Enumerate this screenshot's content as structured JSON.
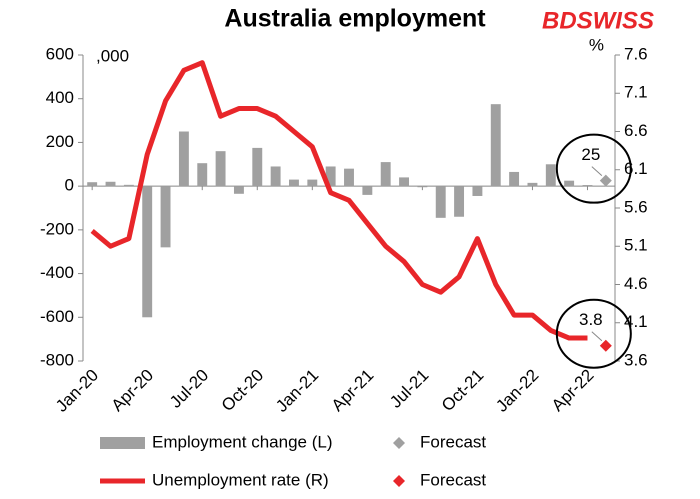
{
  "chart_data": {
    "type": "combo",
    "title": "Australia employment",
    "brand": "BDSWISS",
    "y_label": ",000",
    "y2_label": "%",
    "categories": [
      "Jan-20",
      null,
      null,
      "Apr-20",
      null,
      null,
      "Jul-20",
      null,
      null,
      "Oct-20",
      null,
      null,
      "Jan-21",
      null,
      null,
      "Apr-21",
      null,
      null,
      "Jul-21",
      null,
      null,
      "Oct-21",
      null,
      null,
      "Jan-22",
      null,
      null,
      "Apr-22",
      null
    ],
    "ylim": [
      -800,
      600
    ],
    "yticks": [
      -800,
      -600,
      -400,
      -200,
      0,
      200,
      400,
      600
    ],
    "y2lim": [
      3.6,
      7.6
    ],
    "y2ticks": [
      3.6,
      4.1,
      4.6,
      5.1,
      5.6,
      6.1,
      6.6,
      7.1,
      7.6
    ],
    "series": [
      {
        "name": "Employment change (L)",
        "mark": "bar",
        "color": "#a0a0a0",
        "values": [
          18,
          20,
          6,
          -600,
          -280,
          250,
          105,
          160,
          -35,
          175,
          90,
          30,
          30,
          90,
          80,
          -40,
          110,
          40,
          -5,
          -145,
          -140,
          -45,
          375,
          65,
          15,
          100,
          25,
          5,
          null
        ]
      },
      {
        "name": "Forecast",
        "mark": "diamond",
        "color": "#a0a0a0",
        "values": [
          null,
          null,
          null,
          null,
          null,
          null,
          null,
          null,
          null,
          null,
          null,
          null,
          null,
          null,
          null,
          null,
          null,
          null,
          null,
          null,
          null,
          null,
          null,
          null,
          null,
          null,
          null,
          null,
          25
        ]
      },
      {
        "name": "Unemployment rate (R)",
        "mark": "line",
        "axis": "y2",
        "color": "#e8262a",
        "values": [
          5.3,
          5.1,
          5.2,
          6.3,
          7.0,
          7.4,
          7.5,
          6.8,
          6.9,
          6.9,
          6.8,
          6.6,
          6.4,
          5.8,
          5.7,
          5.4,
          5.1,
          4.9,
          4.6,
          4.5,
          4.7,
          5.2,
          4.6,
          4.2,
          4.2,
          4.0,
          3.9,
          3.9,
          null
        ]
      },
      {
        "name": "Forecast",
        "mark": "diamond",
        "axis": "y2",
        "color": "#e8262a",
        "values": [
          null,
          null,
          null,
          null,
          null,
          null,
          null,
          null,
          null,
          null,
          null,
          null,
          null,
          null,
          null,
          null,
          null,
          null,
          null,
          null,
          null,
          null,
          null,
          null,
          null,
          null,
          null,
          null,
          3.8
        ]
      }
    ]
  }
}
